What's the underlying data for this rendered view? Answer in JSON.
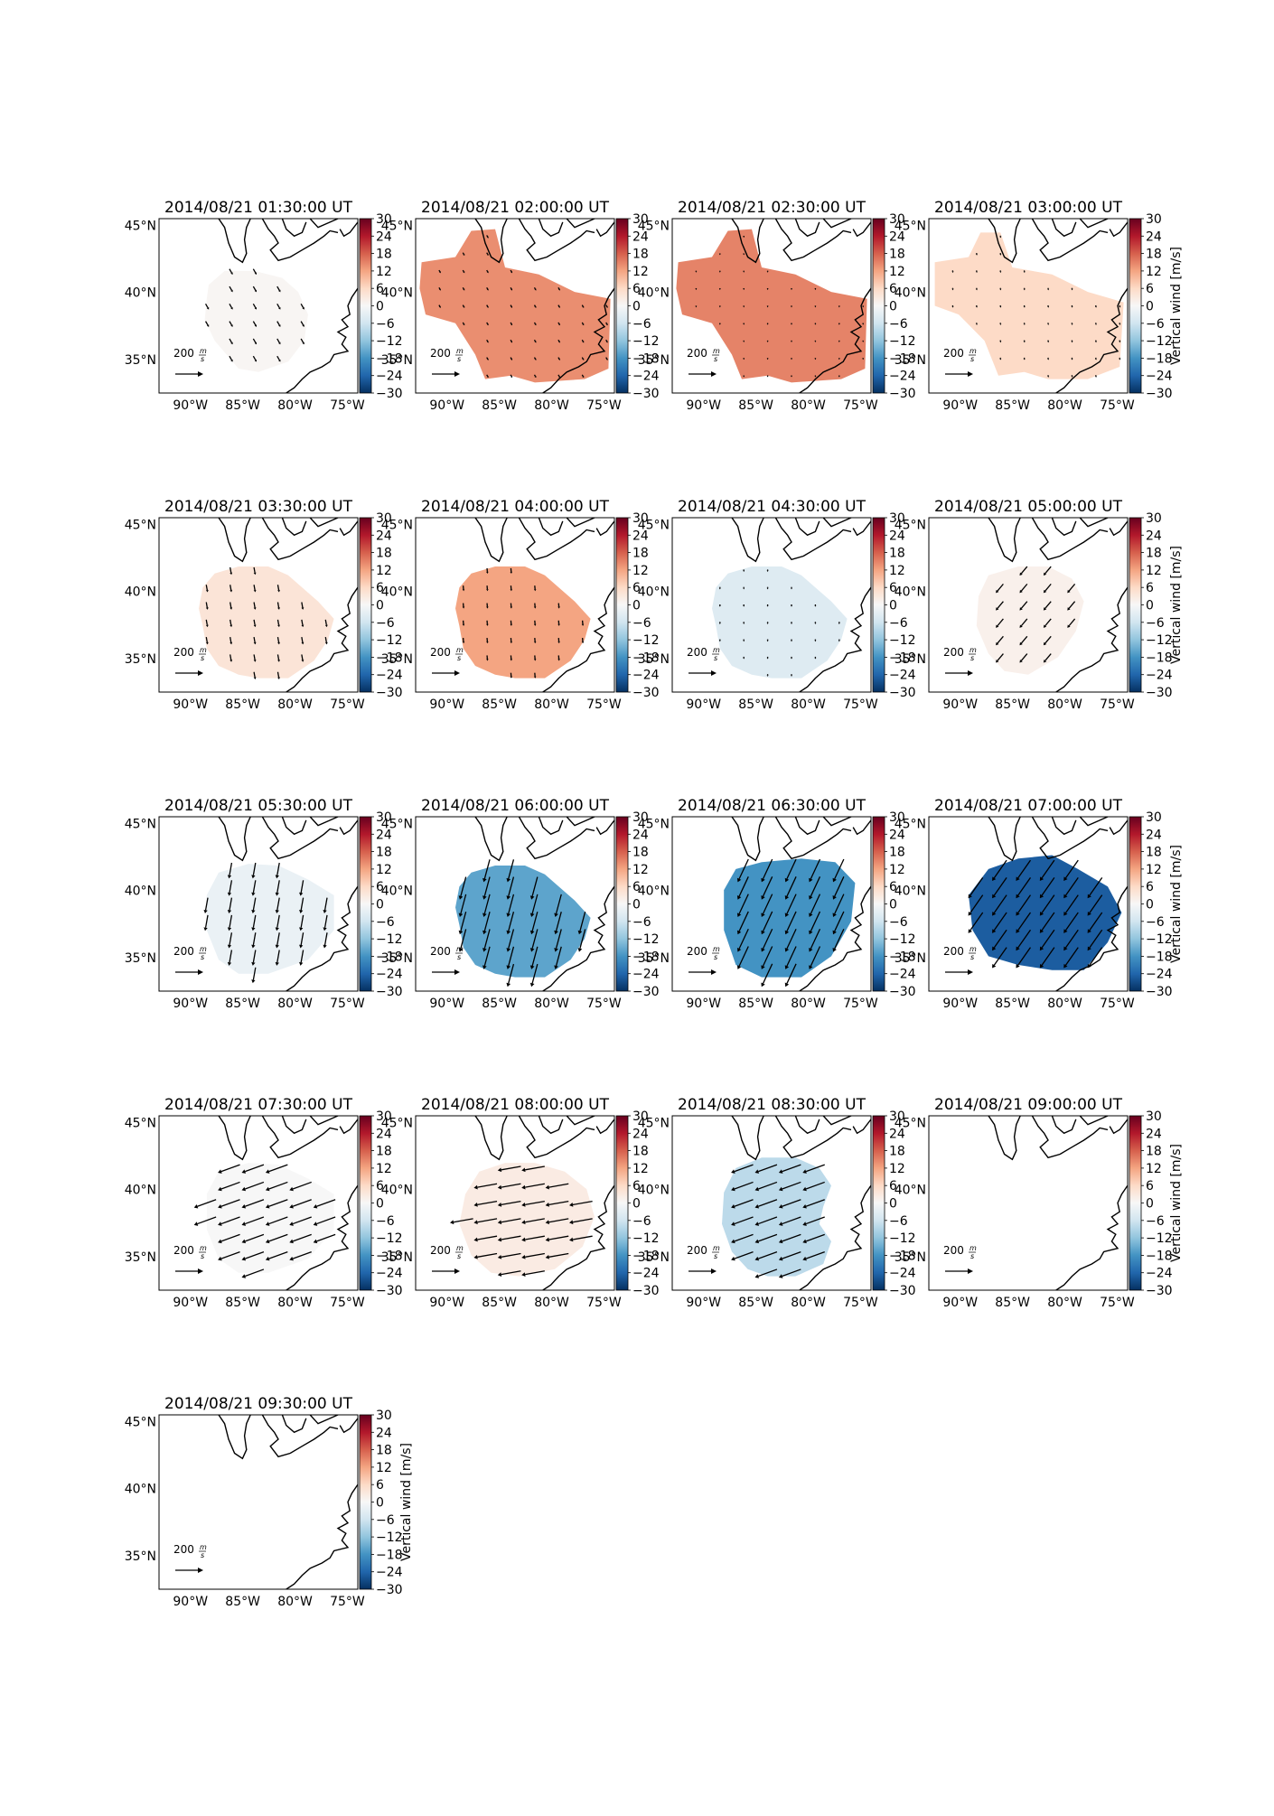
{
  "figure": {
    "colorbar": {
      "label": "Vertical wind [m/s]",
      "ticks": [
        "30",
        "24",
        "18",
        "12",
        "6",
        "0",
        "−6",
        "−12",
        "−18",
        "−24",
        "−30"
      ],
      "vmin": -30,
      "vmax": 30,
      "colormap": "RdBu_r",
      "stops": [
        "#053061",
        "#2166ac",
        "#4393c3",
        "#92c5de",
        "#d1e5f0",
        "#f7f7f7",
        "#fddbc7",
        "#f4a582",
        "#d6604d",
        "#b2182b",
        "#67001f"
      ]
    },
    "axes": {
      "xticks": [
        "90°W",
        "85°W",
        "80°W",
        "75°W"
      ],
      "yticks": [
        "45°N",
        "40°N",
        "35°N"
      ],
      "lon_range": [
        -93,
        -74
      ],
      "lat_range": [
        32.5,
        45.5
      ]
    },
    "reference_arrow": {
      "label_value": "200",
      "label_unit_num": "m",
      "label_unit_den": "s"
    }
  },
  "chart_data": [
    {
      "type": "heatmap",
      "title": "2014/08/21 01:30:00 UT",
      "vertical_wind": 0.5,
      "region": "a",
      "arrow_len": 5,
      "arrow_dir": 300
    },
    {
      "type": "heatmap",
      "title": "2014/08/21 02:00:00 UT",
      "vertical_wind": 14,
      "region": "b",
      "arrow_len": 2,
      "arrow_dir": 300
    },
    {
      "type": "heatmap",
      "title": "2014/08/21 02:30:00 UT",
      "vertical_wind": 15,
      "region": "b",
      "arrow_len": 0.5,
      "arrow_dir": 270
    },
    {
      "type": "heatmap",
      "title": "2014/08/21 03:00:00 UT",
      "vertical_wind": 6,
      "region": "c",
      "arrow_len": 1,
      "arrow_dir": 280
    },
    {
      "type": "heatmap",
      "title": "2014/08/21 03:30:00 UT",
      "vertical_wind": 4,
      "region": "d",
      "arrow_len": 6,
      "arrow_dir": 280
    },
    {
      "type": "heatmap",
      "title": "2014/08/21 04:00:00 UT",
      "vertical_wind": 12,
      "region": "d",
      "arrow_len": 4,
      "arrow_dir": 275
    },
    {
      "type": "heatmap",
      "title": "2014/08/21 04:30:00 UT",
      "vertical_wind": -4,
      "region": "d",
      "arrow_len": 1,
      "arrow_dir": 270
    },
    {
      "type": "heatmap",
      "title": "2014/08/21 05:00:00 UT",
      "vertical_wind": 1.5,
      "region": "e",
      "arrow_len": 10,
      "arrow_dir": 230
    },
    {
      "type": "heatmap",
      "title": "2014/08/21 05:30:00 UT",
      "vertical_wind": -2,
      "region": "f",
      "arrow_len": 14,
      "arrow_dir": 260
    },
    {
      "type": "heatmap",
      "title": "2014/08/21 06:00:00 UT",
      "vertical_wind": -16,
      "region": "d",
      "arrow_len": 22,
      "arrow_dir": 255
    },
    {
      "type": "heatmap",
      "title": "2014/08/21 06:30:00 UT",
      "vertical_wind": -18,
      "region": "g",
      "arrow_len": 24,
      "arrow_dir": 245
    },
    {
      "type": "heatmap",
      "title": "2014/08/21 07:00:00 UT",
      "vertical_wind": -25,
      "region": "h",
      "arrow_len": 24,
      "arrow_dir": 235
    },
    {
      "type": "heatmap",
      "title": "2014/08/21 07:30:00 UT",
      "vertical_wind": 0,
      "region": "f",
      "arrow_len": 22,
      "arrow_dir": 200
    },
    {
      "type": "heatmap",
      "title": "2014/08/21 08:00:00 UT",
      "vertical_wind": 2.5,
      "region": "i",
      "arrow_len": 22,
      "arrow_dir": 190
    },
    {
      "type": "heatmap",
      "title": "2014/08/21 08:30:00 UT",
      "vertical_wind": -8,
      "region": "j",
      "arrow_len": 22,
      "arrow_dir": 200
    },
    {
      "type": "heatmap",
      "title": "2014/08/21 09:00:00 UT",
      "vertical_wind": null,
      "region": "none",
      "arrow_len": 0,
      "arrow_dir": 0
    },
    {
      "type": "heatmap",
      "title": "2014/08/21 09:30:00 UT",
      "vertical_wind": null,
      "region": "none",
      "arrow_len": 0,
      "arrow_dir": 0
    }
  ]
}
